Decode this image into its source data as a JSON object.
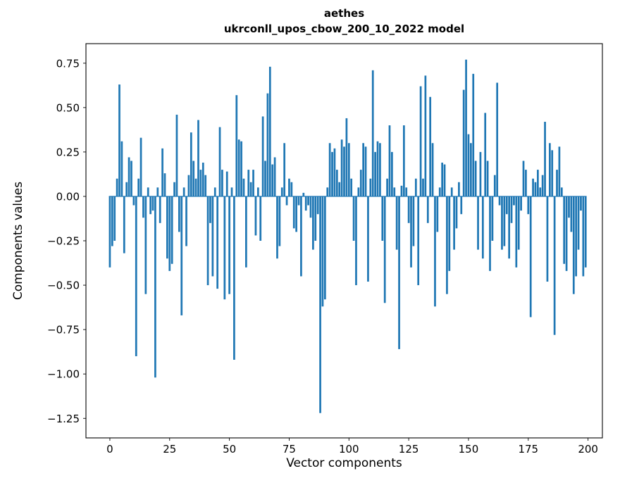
{
  "title": {
    "line1": "aethes",
    "line2": "ukrconll_upos_cbow_200_10_2022 model"
  },
  "chart_data": {
    "type": "bar",
    "title": "aethes\nukrconll_upos_cbow_200_10_2022 model",
    "xlabel": "Vector components",
    "ylabel": "Components values",
    "legend": null,
    "grid": false,
    "bar_color": "#1f77b4",
    "axes_color": "#000000",
    "xlim": [
      -10,
      206
    ],
    "ylim": [
      -1.36,
      0.86
    ],
    "xticks": [
      0,
      25,
      50,
      75,
      100,
      125,
      150,
      175,
      200
    ],
    "yticks": [
      0.75,
      0.5,
      0.25,
      0.0,
      -0.25,
      -0.5,
      -0.75,
      -1.0,
      -1.25
    ],
    "values": [
      -0.4,
      -0.28,
      -0.25,
      0.1,
      0.63,
      0.31,
      -0.32,
      0.08,
      0.22,
      0.2,
      -0.05,
      -0.9,
      0.1,
      0.33,
      -0.12,
      -0.55,
      0.05,
      -0.1,
      -0.08,
      -1.02,
      0.05,
      -0.15,
      0.27,
      0.13,
      -0.35,
      -0.42,
      -0.38,
      0.08,
      0.46,
      -0.2,
      -0.67,
      0.05,
      -0.28,
      0.12,
      0.36,
      0.2,
      0.1,
      0.43,
      0.15,
      0.19,
      0.12,
      -0.5,
      -0.15,
      -0.45,
      0.05,
      -0.52,
      0.39,
      0.15,
      -0.58,
      0.14,
      -0.55,
      0.05,
      -0.92,
      0.57,
      0.32,
      0.31,
      0.1,
      -0.4,
      0.15,
      0.08,
      0.15,
      -0.22,
      0.05,
      -0.25,
      0.45,
      0.2,
      0.58,
      0.73,
      0.18,
      0.22,
      -0.35,
      -0.28,
      0.05,
      0.3,
      -0.05,
      0.1,
      0.08,
      -0.18,
      -0.2,
      -0.05,
      -0.45,
      0.02,
      -0.08,
      -0.05,
      -0.12,
      -0.3,
      -0.25,
      -0.1,
      -1.22,
      -0.62,
      -0.58,
      0.05,
      0.3,
      0.25,
      0.27,
      0.15,
      0.08,
      0.32,
      0.28,
      0.44,
      0.3,
      0.1,
      -0.25,
      -0.5,
      0.05,
      0.15,
      0.3,
      0.28,
      -0.48,
      0.1,
      0.71,
      0.25,
      0.31,
      0.3,
      -0.25,
      -0.6,
      0.1,
      0.4,
      0.25,
      0.05,
      -0.3,
      -0.86,
      0.06,
      0.4,
      0.05,
      -0.15,
      -0.4,
      -0.28,
      0.1,
      -0.5,
      0.62,
      0.1,
      0.68,
      -0.15,
      0.56,
      0.3,
      -0.62,
      -0.2,
      0.05,
      0.19,
      0.18,
      -0.55,
      -0.42,
      0.05,
      -0.3,
      -0.18,
      0.08,
      -0.1,
      0.6,
      0.77,
      0.35,
      0.3,
      0.69,
      0.2,
      -0.3,
      0.25,
      -0.35,
      0.47,
      0.2,
      -0.42,
      -0.25,
      0.12,
      0.64,
      -0.05,
      -0.3,
      -0.28,
      -0.1,
      -0.35,
      -0.15,
      -0.05,
      -0.4,
      -0.3,
      -0.08,
      0.2,
      0.15,
      -0.1,
      -0.68,
      0.1,
      0.08,
      0.15,
      0.05,
      0.12,
      0.42,
      -0.48,
      0.3,
      0.26,
      -0.78,
      0.15,
      0.28,
      0.05,
      -0.38,
      -0.42,
      -0.12,
      -0.2,
      -0.55,
      -0.45,
      -0.3,
      -0.08,
      -0.45,
      -0.4
    ]
  }
}
